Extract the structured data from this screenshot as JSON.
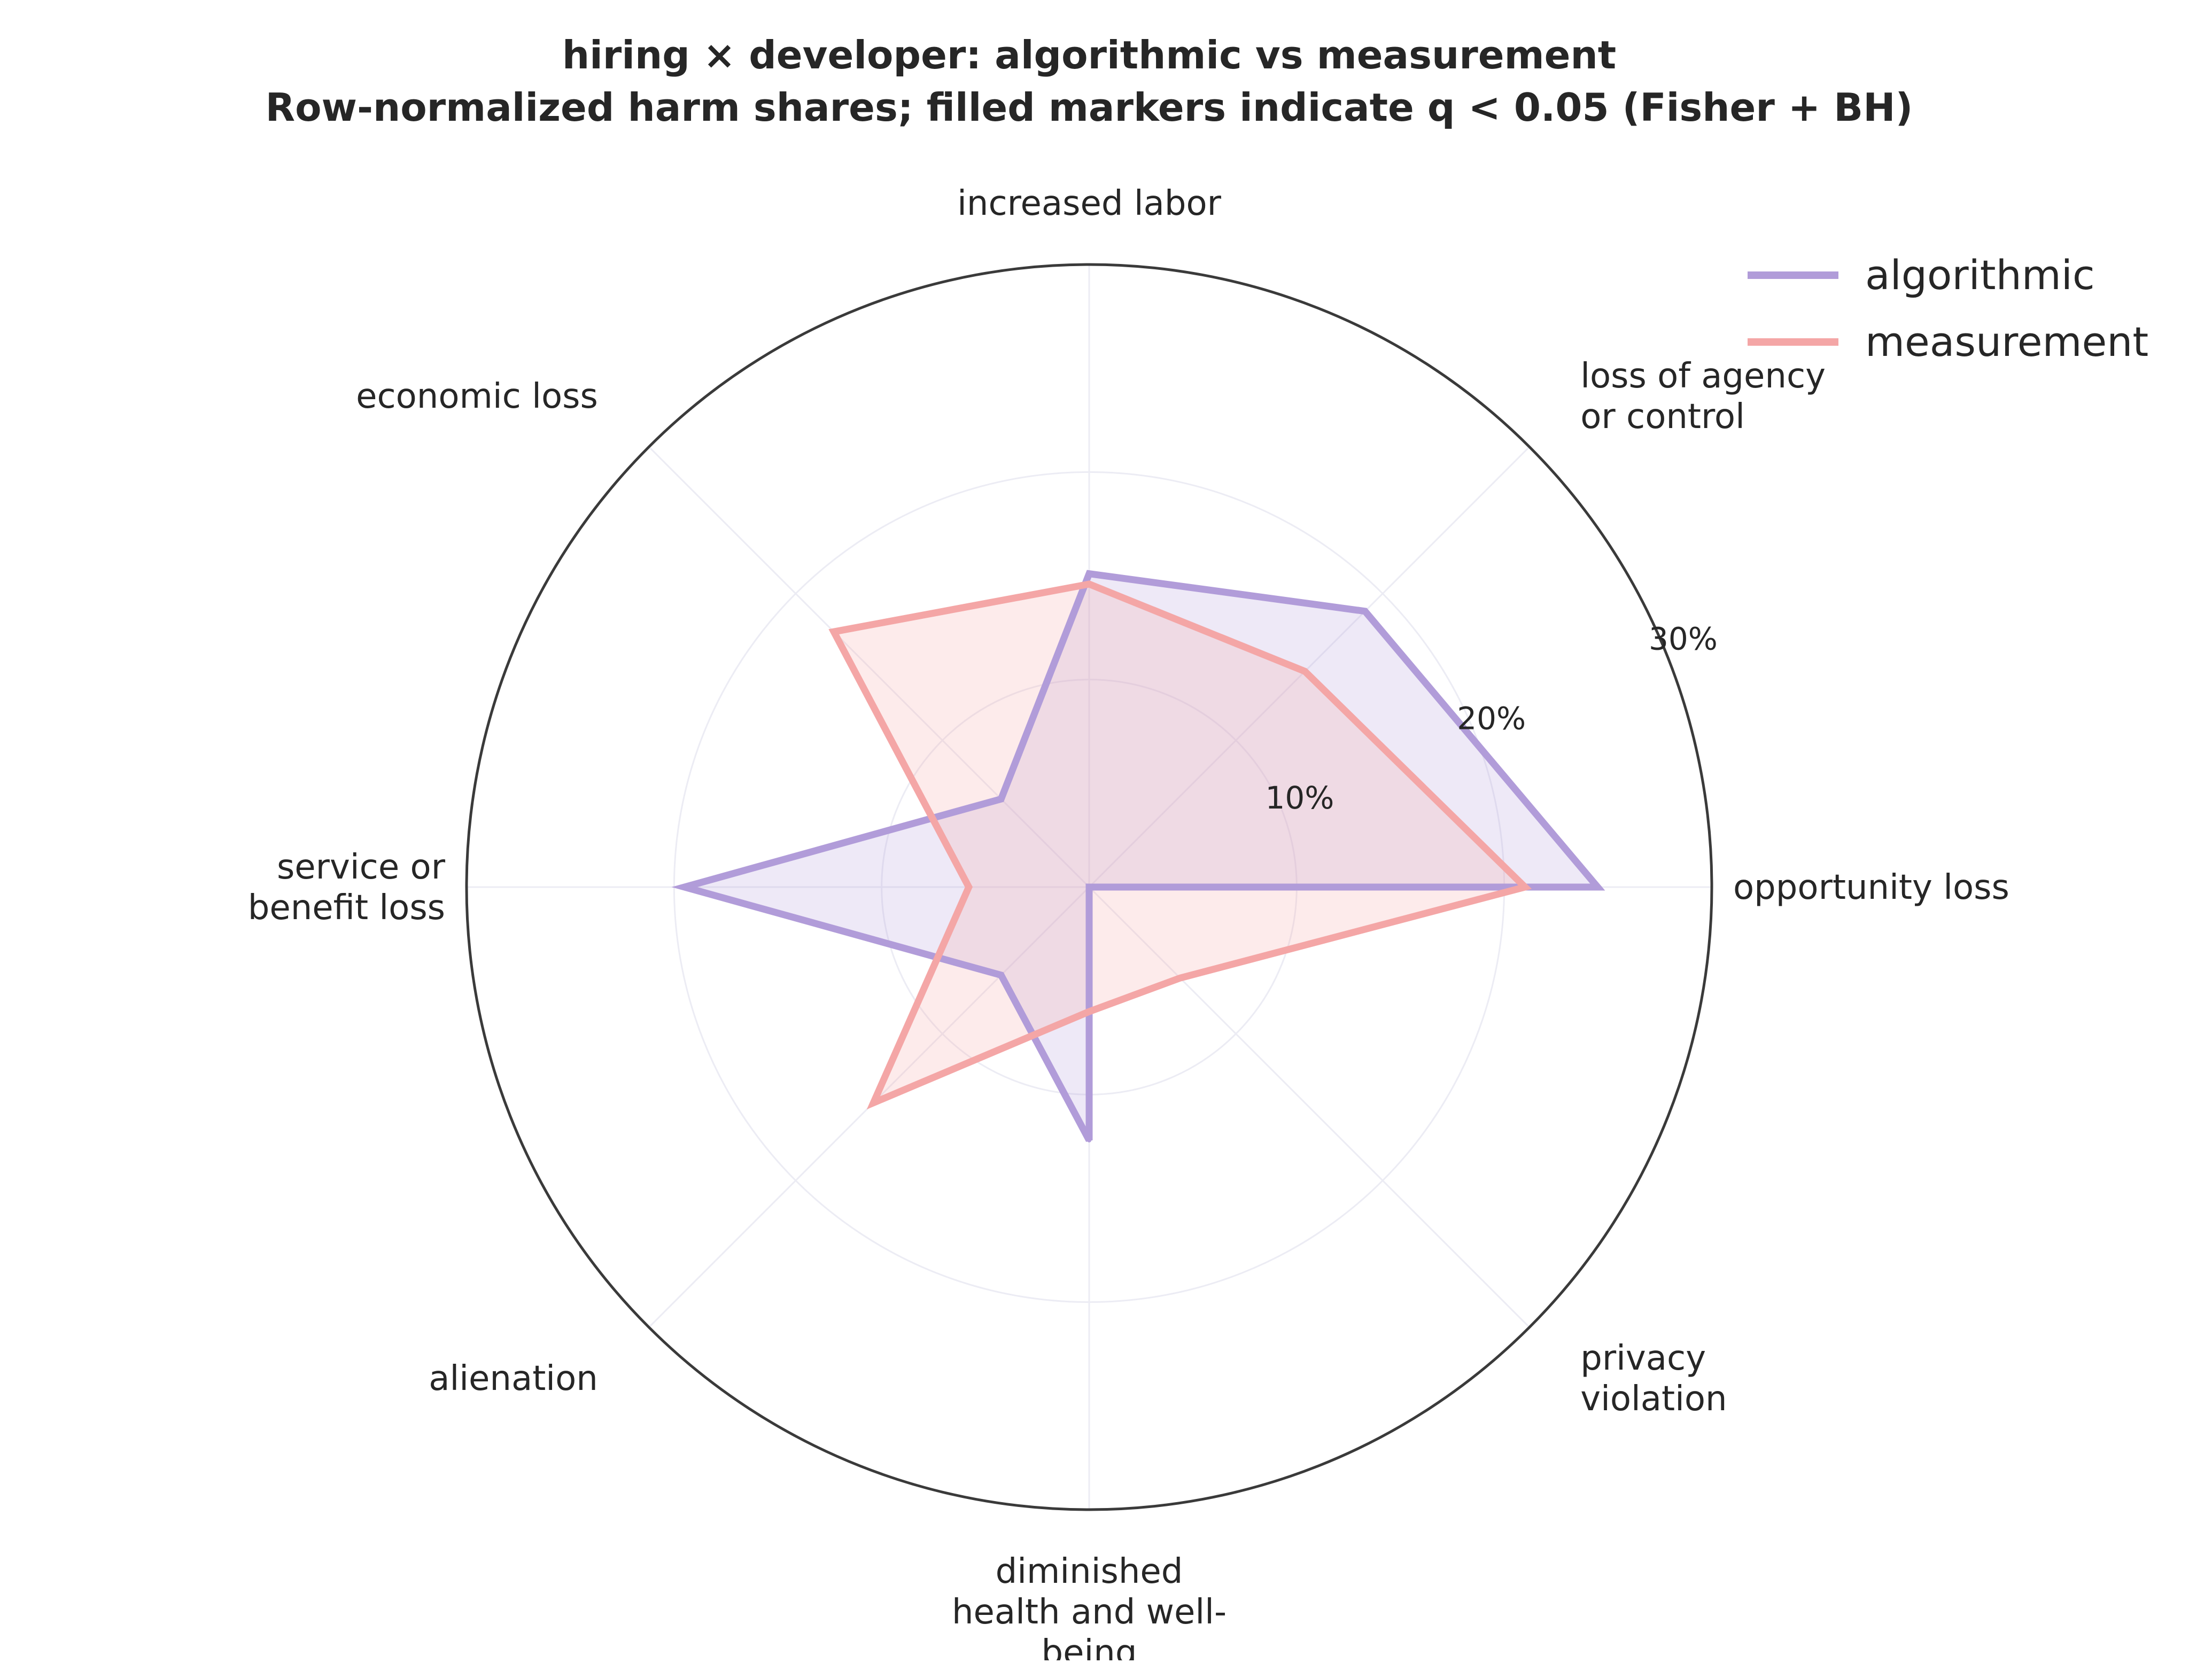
{
  "chart_data": {
    "type": "radar",
    "title_lines": [
      "hiring × developer: algorithmic vs measurement",
      "Row-normalized harm shares; filled markers indicate q < 0.05 (Fisher + BH)"
    ],
    "categories": [
      [
        "opportunity loss"
      ],
      [
        "loss of agency",
        "or control"
      ],
      [
        "increased labor"
      ],
      [
        "economic loss"
      ],
      [
        "service or",
        "benefit loss"
      ],
      [
        "alienation"
      ],
      [
        "diminished",
        "health and well-",
        "being"
      ],
      [
        "privacy",
        "violation"
      ]
    ],
    "r_ticks": [
      10,
      20,
      30
    ],
    "r_tick_labels": [
      "10%",
      "20%",
      "30%"
    ],
    "r_max": 30,
    "grid": true,
    "legend_position": "top-right",
    "series": [
      {
        "name": "algorithmic",
        "color": "#b19cd9",
        "values": [
          24.5,
          18.8,
          15.1,
          6.0,
          19.5,
          6.0,
          12.2,
          0.0
        ]
      },
      {
        "name": "measurement",
        "color": "#f4a6a6",
        "values": [
          21.0,
          14.7,
          14.6,
          17.4,
          5.8,
          14.7,
          6.0,
          6.2
        ]
      }
    ]
  }
}
